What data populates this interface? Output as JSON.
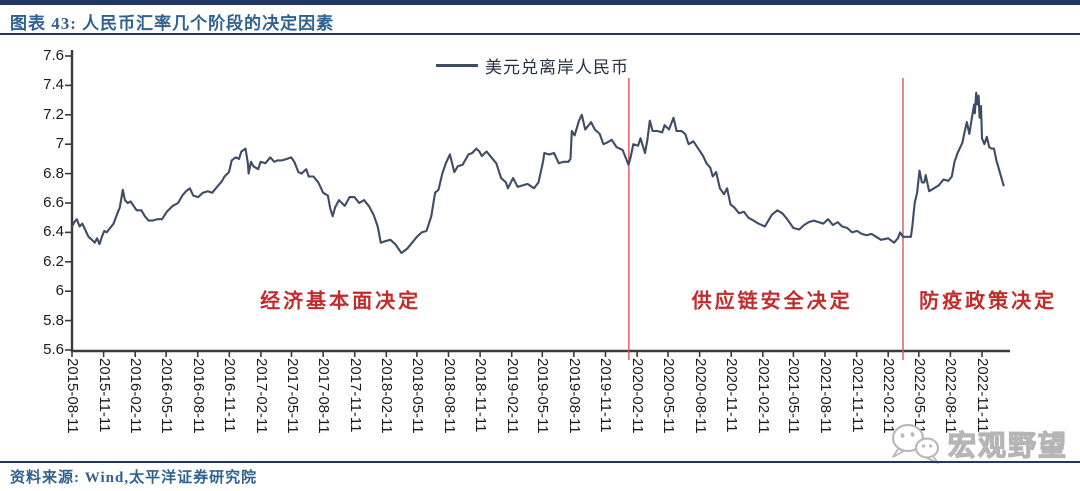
{
  "header": {
    "title": "图表 43: 人民币汇率几个阶段的决定因素"
  },
  "footer": {
    "source": "资料来源: Wind,太平洋证券研究院"
  },
  "watermark": {
    "icon": "wechat-icon",
    "text": "宏观野望"
  },
  "colors": {
    "rule_navy": "#1F3864",
    "title_blue": "#31618F",
    "series_line": "#3E4C66",
    "divider_red": "#E05252",
    "annotation_red": "#C22B2B",
    "axis": "#3a3a3a",
    "watermark_gray": "#b5b5b5"
  },
  "chart_data": {
    "type": "line",
    "grid": false,
    "legend_position": "top-center",
    "y_axis": {
      "min": 5.6,
      "max": 7.6,
      "tick_step": 0.2,
      "ticks": [
        "7.6",
        "7.4",
        "7.2",
        "7",
        "6.8",
        "6.6",
        "6.4",
        "6.2",
        "6",
        "5.8",
        "5.6"
      ]
    },
    "x_axis": {
      "start": "2015-08-11",
      "ticks": [
        "2015-08-11",
        "2015-11-11",
        "2016-02-11",
        "2016-05-11",
        "2016-08-11",
        "2016-11-11",
        "2017-02-11",
        "2017-05-11",
        "2017-08-11",
        "2017-11-11",
        "2018-02-11",
        "2018-05-11",
        "2018-08-11",
        "2018-11-11",
        "2019-02-11",
        "2019-05-11",
        "2019-08-11",
        "2019-11-11",
        "2020-02-11",
        "2020-05-11",
        "2020-08-11",
        "2020-11-11",
        "2021-02-11",
        "2021-05-11",
        "2021-08-11",
        "2021-11-11",
        "2022-02-11",
        "2022-05-11",
        "2022-08-11",
        "2022-11-11"
      ]
    },
    "vlines": [
      {
        "date": "2020-01-18",
        "color": "#E05252"
      },
      {
        "date": "2022-03-26",
        "color": "#E05252"
      }
    ],
    "annotations": [
      {
        "text": "经济基本面决定",
        "date": "2017-10-01",
        "value": 5.95
      },
      {
        "text": "供应链安全决定",
        "date": "2021-03-10",
        "value": 5.95
      },
      {
        "text": "防疫政策决定",
        "date": "2022-11-29",
        "value": 5.95
      }
    ],
    "series": [
      {
        "name": "美元兑离岸人民币",
        "color": "#3E4C66",
        "points": [
          [
            "2015-08-11",
            6.44
          ],
          [
            "2015-08-18",
            6.47
          ],
          [
            "2015-08-25",
            6.49
          ],
          [
            "2015-09-02",
            6.44
          ],
          [
            "2015-09-10",
            6.46
          ],
          [
            "2015-09-18",
            6.42
          ],
          [
            "2015-09-28",
            6.37
          ],
          [
            "2015-10-08",
            6.35
          ],
          [
            "2015-10-16",
            6.33
          ],
          [
            "2015-10-23",
            6.36
          ],
          [
            "2015-10-30",
            6.32
          ],
          [
            "2015-11-06",
            6.37
          ],
          [
            "2015-11-13",
            6.41
          ],
          [
            "2015-11-20",
            6.4
          ],
          [
            "2015-11-30",
            6.43
          ],
          [
            "2015-12-10",
            6.46
          ],
          [
            "2015-12-18",
            6.51
          ],
          [
            "2015-12-28",
            6.57
          ],
          [
            "2016-01-06",
            6.69
          ],
          [
            "2016-01-12",
            6.62
          ],
          [
            "2016-01-20",
            6.6
          ],
          [
            "2016-01-29",
            6.61
          ],
          [
            "2016-02-15",
            6.55
          ],
          [
            "2016-02-29",
            6.55
          ],
          [
            "2016-03-10",
            6.51
          ],
          [
            "2016-03-21",
            6.48
          ],
          [
            "2016-04-01",
            6.48
          ],
          [
            "2016-04-15",
            6.49
          ],
          [
            "2016-04-29",
            6.49
          ],
          [
            "2016-05-13",
            6.54
          ],
          [
            "2016-05-30",
            6.58
          ],
          [
            "2016-06-15",
            6.6
          ],
          [
            "2016-06-27",
            6.65
          ],
          [
            "2016-07-08",
            6.68
          ],
          [
            "2016-07-19",
            6.7
          ],
          [
            "2016-07-29",
            6.65
          ],
          [
            "2016-08-12",
            6.64
          ],
          [
            "2016-08-26",
            6.67
          ],
          [
            "2016-09-09",
            6.68
          ],
          [
            "2016-09-22",
            6.67
          ],
          [
            "2016-10-10",
            6.72
          ],
          [
            "2016-10-21",
            6.75
          ],
          [
            "2016-10-28",
            6.78
          ],
          [
            "2016-11-10",
            6.81
          ],
          [
            "2016-11-18",
            6.89
          ],
          [
            "2016-11-29",
            6.91
          ],
          [
            "2016-12-09",
            6.9
          ],
          [
            "2016-12-16",
            6.95
          ],
          [
            "2016-12-28",
            6.97
          ],
          [
            "2017-01-04",
            6.87
          ],
          [
            "2017-01-06",
            6.8
          ],
          [
            "2017-01-13",
            6.88
          ],
          [
            "2017-01-20",
            6.85
          ],
          [
            "2017-02-03",
            6.83
          ],
          [
            "2017-02-10",
            6.88
          ],
          [
            "2017-02-24",
            6.87
          ],
          [
            "2017-03-10",
            6.91
          ],
          [
            "2017-03-22",
            6.88
          ],
          [
            "2017-03-31",
            6.89
          ],
          [
            "2017-04-14",
            6.89
          ],
          [
            "2017-04-28",
            6.9
          ],
          [
            "2017-05-10",
            6.91
          ],
          [
            "2017-05-19",
            6.88
          ],
          [
            "2017-05-31",
            6.81
          ],
          [
            "2017-06-09",
            6.8
          ],
          [
            "2017-06-23",
            6.83
          ],
          [
            "2017-06-30",
            6.78
          ],
          [
            "2017-07-14",
            6.78
          ],
          [
            "2017-07-28",
            6.74
          ],
          [
            "2017-08-11",
            6.67
          ],
          [
            "2017-08-25",
            6.65
          ],
          [
            "2017-09-01",
            6.56
          ],
          [
            "2017-09-08",
            6.51
          ],
          [
            "2017-09-15",
            6.57
          ],
          [
            "2017-09-26",
            6.62
          ],
          [
            "2017-10-13",
            6.58
          ],
          [
            "2017-10-27",
            6.64
          ],
          [
            "2017-11-10",
            6.64
          ],
          [
            "2017-11-24",
            6.6
          ],
          [
            "2017-12-08",
            6.62
          ],
          [
            "2017-12-22",
            6.58
          ],
          [
            "2018-01-05",
            6.52
          ],
          [
            "2018-01-17",
            6.44
          ],
          [
            "2018-01-26",
            6.33
          ],
          [
            "2018-02-07",
            6.34
          ],
          [
            "2018-02-23",
            6.35
          ],
          [
            "2018-03-09",
            6.32
          ],
          [
            "2018-03-27",
            6.26
          ],
          [
            "2018-04-13",
            6.29
          ],
          [
            "2018-04-27",
            6.33
          ],
          [
            "2018-05-11",
            6.37
          ],
          [
            "2018-05-25",
            6.4
          ],
          [
            "2018-06-08",
            6.41
          ],
          [
            "2018-06-22",
            6.51
          ],
          [
            "2018-07-03",
            6.67
          ],
          [
            "2018-07-13",
            6.69
          ],
          [
            "2018-07-24",
            6.8
          ],
          [
            "2018-08-03",
            6.87
          ],
          [
            "2018-08-15",
            6.93
          ],
          [
            "2018-08-28",
            6.81
          ],
          [
            "2018-09-07",
            6.85
          ],
          [
            "2018-09-21",
            6.86
          ],
          [
            "2018-10-08",
            6.93
          ],
          [
            "2018-10-19",
            6.94
          ],
          [
            "2018-10-31",
            6.97
          ],
          [
            "2018-11-09",
            6.95
          ],
          [
            "2018-11-16",
            6.92
          ],
          [
            "2018-11-30",
            6.95
          ],
          [
            "2018-12-14",
            6.91
          ],
          [
            "2018-12-28",
            6.87
          ],
          [
            "2019-01-11",
            6.77
          ],
          [
            "2019-01-25",
            6.74
          ],
          [
            "2019-01-31",
            6.7
          ],
          [
            "2019-02-15",
            6.77
          ],
          [
            "2019-02-28",
            6.71
          ],
          [
            "2019-03-15",
            6.72
          ],
          [
            "2019-03-29",
            6.73
          ],
          [
            "2019-04-17",
            6.7
          ],
          [
            "2019-04-30",
            6.74
          ],
          [
            "2019-05-13",
            6.88
          ],
          [
            "2019-05-17",
            6.94
          ],
          [
            "2019-05-31",
            6.93
          ],
          [
            "2019-06-14",
            6.94
          ],
          [
            "2019-06-28",
            6.87
          ],
          [
            "2019-07-12",
            6.88
          ],
          [
            "2019-07-26",
            6.88
          ],
          [
            "2019-08-01",
            6.9
          ],
          [
            "2019-08-05",
            7.09
          ],
          [
            "2019-08-13",
            7.06
          ],
          [
            "2019-08-26",
            7.16
          ],
          [
            "2019-09-03",
            7.2
          ],
          [
            "2019-09-13",
            7.1
          ],
          [
            "2019-09-20",
            7.12
          ],
          [
            "2019-09-30",
            7.15
          ],
          [
            "2019-10-11",
            7.1
          ],
          [
            "2019-10-25",
            7.07
          ],
          [
            "2019-11-05",
            7.0
          ],
          [
            "2019-11-15",
            7.01
          ],
          [
            "2019-11-29",
            7.03
          ],
          [
            "2019-12-13",
            6.98
          ],
          [
            "2019-12-31",
            6.96
          ],
          [
            "2020-01-17",
            6.86
          ],
          [
            "2020-01-23",
            6.91
          ],
          [
            "2020-01-31",
            7.0
          ],
          [
            "2020-02-14",
            6.99
          ],
          [
            "2020-02-21",
            7.04
          ],
          [
            "2020-03-05",
            6.94
          ],
          [
            "2020-03-12",
            7.03
          ],
          [
            "2020-03-19",
            7.16
          ],
          [
            "2020-03-27",
            7.09
          ],
          [
            "2020-04-10",
            7.09
          ],
          [
            "2020-04-24",
            7.08
          ],
          [
            "2020-05-01",
            7.13
          ],
          [
            "2020-05-14",
            7.1
          ],
          [
            "2020-05-27",
            7.18
          ],
          [
            "2020-06-05",
            7.09
          ],
          [
            "2020-06-19",
            7.09
          ],
          [
            "2020-06-30",
            7.07
          ],
          [
            "2020-07-10",
            7.0
          ],
          [
            "2020-07-24",
            7.02
          ],
          [
            "2020-08-07",
            6.97
          ],
          [
            "2020-08-21",
            6.92
          ],
          [
            "2020-08-31",
            6.87
          ],
          [
            "2020-09-11",
            6.84
          ],
          [
            "2020-09-18",
            6.78
          ],
          [
            "2020-09-28",
            6.81
          ],
          [
            "2020-10-09",
            6.7
          ],
          [
            "2020-10-21",
            6.66
          ],
          [
            "2020-10-30",
            6.7
          ],
          [
            "2020-11-09",
            6.59
          ],
          [
            "2020-11-20",
            6.57
          ],
          [
            "2020-12-04",
            6.53
          ],
          [
            "2020-12-18",
            6.54
          ],
          [
            "2020-12-31",
            6.5
          ],
          [
            "2021-01-15",
            6.48
          ],
          [
            "2021-01-29",
            6.46
          ],
          [
            "2021-02-17",
            6.44
          ],
          [
            "2021-03-09",
            6.52
          ],
          [
            "2021-03-25",
            6.55
          ],
          [
            "2021-04-09",
            6.53
          ],
          [
            "2021-04-23",
            6.49
          ],
          [
            "2021-05-11",
            6.43
          ],
          [
            "2021-05-28",
            6.42
          ],
          [
            "2021-06-11",
            6.45
          ],
          [
            "2021-06-25",
            6.47
          ],
          [
            "2021-07-09",
            6.48
          ],
          [
            "2021-07-23",
            6.47
          ],
          [
            "2021-08-06",
            6.46
          ],
          [
            "2021-08-20",
            6.49
          ],
          [
            "2021-09-03",
            6.45
          ],
          [
            "2021-09-17",
            6.47
          ],
          [
            "2021-09-30",
            6.44
          ],
          [
            "2021-10-15",
            6.43
          ],
          [
            "2021-10-29",
            6.4
          ],
          [
            "2021-11-12",
            6.41
          ],
          [
            "2021-11-26",
            6.39
          ],
          [
            "2021-12-10",
            6.38
          ],
          [
            "2021-12-24",
            6.39
          ],
          [
            "2022-01-07",
            6.37
          ],
          [
            "2022-01-21",
            6.35
          ],
          [
            "2022-02-11",
            6.36
          ],
          [
            "2022-02-28",
            6.33
          ],
          [
            "2022-03-11",
            6.36
          ],
          [
            "2022-03-18",
            6.4
          ],
          [
            "2022-03-26",
            6.37
          ],
          [
            "2022-04-08",
            6.37
          ],
          [
            "2022-04-18",
            6.37
          ],
          [
            "2022-04-22",
            6.44
          ],
          [
            "2022-04-29",
            6.6
          ],
          [
            "2022-05-06",
            6.67
          ],
          [
            "2022-05-13",
            6.82
          ],
          [
            "2022-05-20",
            6.74
          ],
          [
            "2022-05-27",
            6.74
          ],
          [
            "2022-05-31",
            6.79
          ],
          [
            "2022-06-10",
            6.68
          ],
          [
            "2022-06-24",
            6.7
          ],
          [
            "2022-07-08",
            6.72
          ],
          [
            "2022-07-22",
            6.76
          ],
          [
            "2022-08-05",
            6.75
          ],
          [
            "2022-08-15",
            6.78
          ],
          [
            "2022-08-23",
            6.88
          ],
          [
            "2022-09-01",
            6.94
          ],
          [
            "2022-09-15",
            7.01
          ],
          [
            "2022-09-22",
            7.09
          ],
          [
            "2022-09-28",
            7.15
          ],
          [
            "2022-10-05",
            7.07
          ],
          [
            "2022-10-14",
            7.2
          ],
          [
            "2022-10-19",
            7.27
          ],
          [
            "2022-10-21",
            7.21
          ],
          [
            "2022-10-25",
            7.35
          ],
          [
            "2022-10-28",
            7.27
          ],
          [
            "2022-11-01",
            7.33
          ],
          [
            "2022-11-04",
            7.18
          ],
          [
            "2022-11-08",
            7.26
          ],
          [
            "2022-11-11",
            7.04
          ],
          [
            "2022-11-18",
            7.0
          ],
          [
            "2022-11-25",
            7.05
          ],
          [
            "2022-12-02",
            6.98
          ],
          [
            "2022-12-09",
            6.97
          ],
          [
            "2022-12-16",
            6.97
          ],
          [
            "2022-12-23",
            6.89
          ],
          [
            "2023-01-03",
            6.8
          ],
          [
            "2023-01-13",
            6.72
          ]
        ]
      }
    ]
  }
}
